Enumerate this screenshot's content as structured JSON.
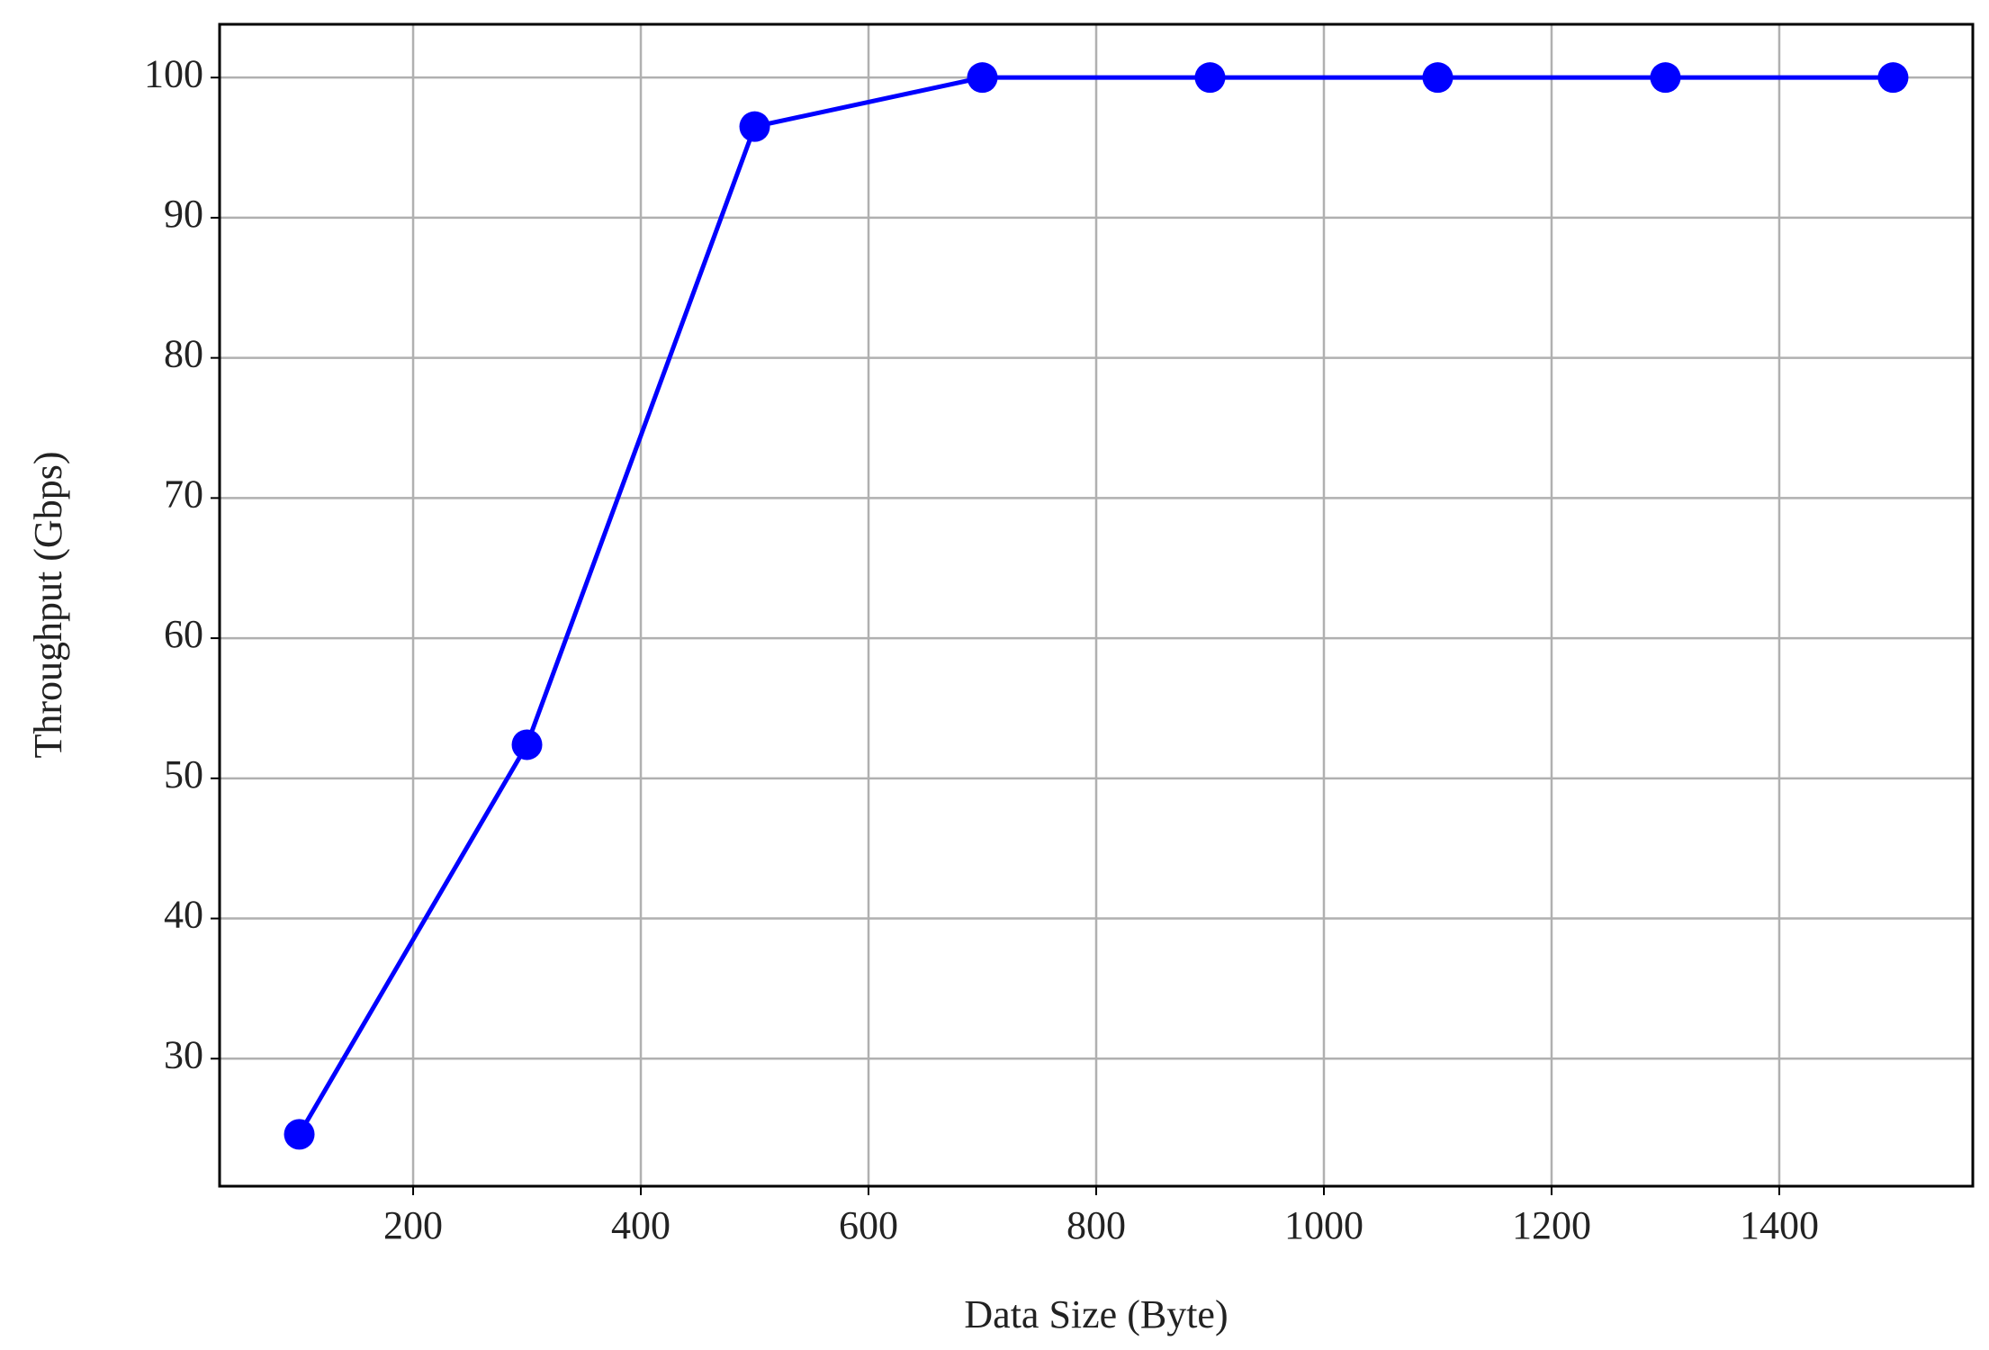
{
  "chart_data": {
    "type": "line",
    "x": [
      100,
      300,
      500,
      700,
      900,
      1100,
      1300,
      1500
    ],
    "series": [
      {
        "name": "Throughput",
        "color": "#0000ff",
        "values": [
          24.6,
          52.4,
          96.5,
          100,
          100,
          100,
          100,
          100
        ]
      }
    ],
    "x_label": "Data Size (Byte)",
    "y_label": "Throughput (Gbps)",
    "xlim": [
      30,
      1570
    ],
    "ylim": [
      20.9,
      103.8
    ],
    "xticks": [
      200,
      400,
      600,
      800,
      1000,
      1200,
      1400
    ],
    "yticks": [
      30,
      40,
      50,
      60,
      70,
      80,
      90,
      100
    ],
    "grid": true
  }
}
